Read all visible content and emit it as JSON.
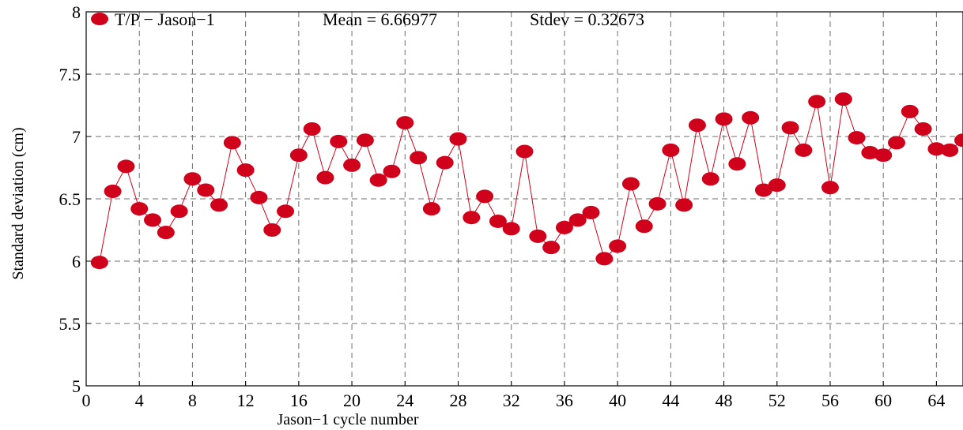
{
  "chart_data": {
    "type": "line",
    "xlabel": "Jason−1 cycle number",
    "ylabel": "Standard deviation (cm)",
    "xlim": [
      0,
      66
    ],
    "ylim": [
      5,
      8
    ],
    "xticks": [
      0,
      4,
      8,
      12,
      16,
      20,
      24,
      28,
      32,
      36,
      40,
      44,
      48,
      52,
      56,
      60,
      64
    ],
    "yticks": [
      5,
      5.5,
      6,
      6.5,
      7,
      7.5,
      8
    ],
    "grid": true,
    "legend_position": "top-left",
    "series": [
      {
        "name": "T/P − Jason−1",
        "color": "#d0021b",
        "marker": "circle",
        "x": [
          1,
          2,
          3,
          4,
          5,
          6,
          7,
          8,
          9,
          10,
          11,
          12,
          13,
          14,
          15,
          16,
          17,
          18,
          19,
          20,
          21,
          22,
          23,
          24,
          25,
          26,
          27,
          28,
          29,
          30,
          31,
          32,
          33,
          34,
          35,
          36,
          37,
          38,
          39,
          40,
          41,
          42,
          43,
          44,
          45,
          46,
          47,
          48,
          49,
          50,
          51,
          52,
          53,
          54,
          55,
          56,
          57,
          58,
          59,
          60,
          61,
          62,
          63,
          64,
          65,
          66
        ],
        "y": [
          5.99,
          6.56,
          6.76,
          6.42,
          6.33,
          6.23,
          6.4,
          6.66,
          6.57,
          6.45,
          6.95,
          6.73,
          6.51,
          6.25,
          6.4,
          6.85,
          7.06,
          6.67,
          6.96,
          6.77,
          6.97,
          6.65,
          6.72,
          7.11,
          6.83,
          6.42,
          6.79,
          6.98,
          6.35,
          6.52,
          6.32,
          6.26,
          6.88,
          6.2,
          6.11,
          6.27,
          6.33,
          6.39,
          6.02,
          6.12,
          6.62,
          6.28,
          6.46,
          6.89,
          6.45,
          7.09,
          6.66,
          7.14,
          6.78,
          7.15,
          6.57,
          6.61,
          7.07,
          6.89,
          7.28,
          6.59,
          7.3,
          6.99,
          6.87,
          6.85,
          6.95,
          7.2,
          7.06,
          6.9,
          6.89,
          6.97
        ]
      }
    ],
    "annotations": {
      "mean": "Mean = 6.66977",
      "stdev": "Stdev = 0.32673"
    }
  }
}
